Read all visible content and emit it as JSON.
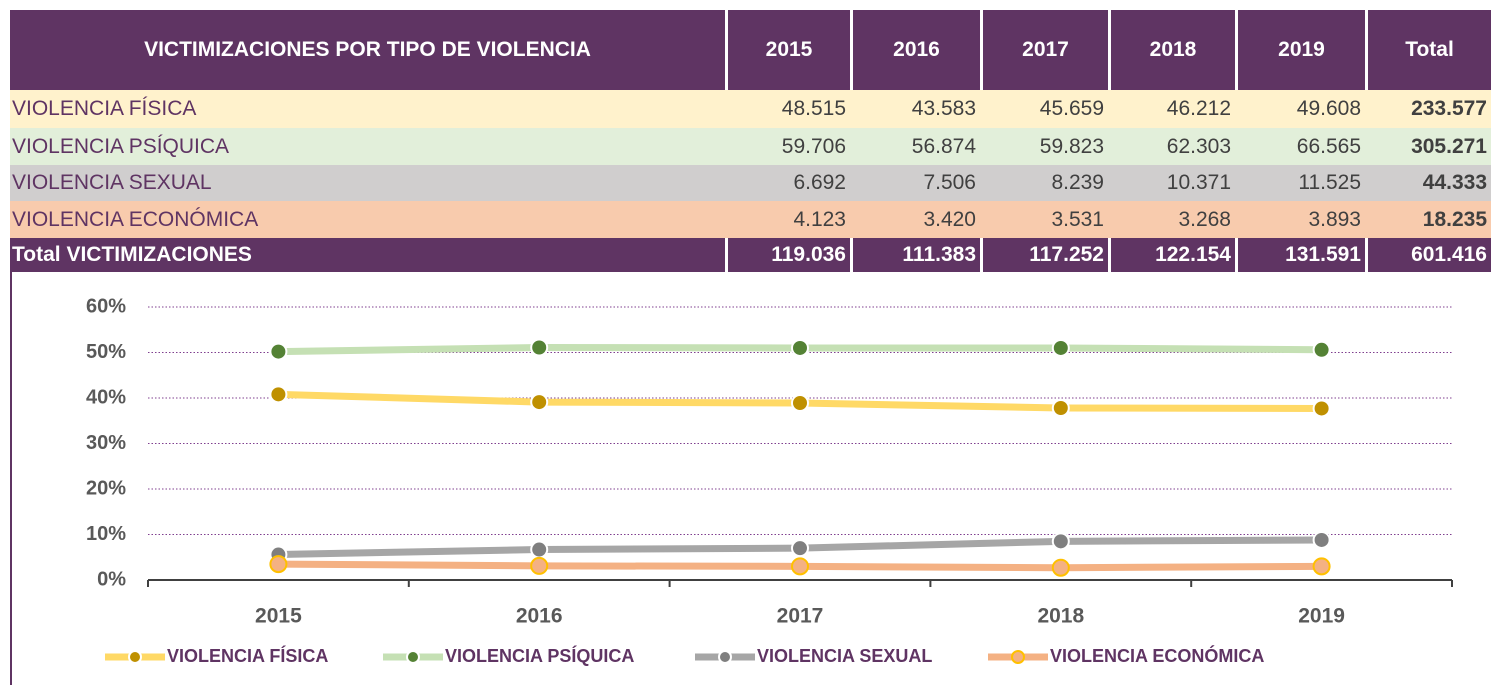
{
  "table": {
    "header": [
      "VICTIMIZACIONES POR TIPO DE VIOLENCIA",
      "2015",
      "2016",
      "2017",
      "2018",
      "2019",
      "Total"
    ],
    "rows": [
      [
        "VIOLENCIA FÍSICA",
        "48.515",
        "43.583",
        "45.659",
        "46.212",
        "49.608",
        "233.577"
      ],
      [
        "VIOLENCIA PSÍQUICA",
        "59.706",
        "56.874",
        "59.823",
        "62.303",
        "66.565",
        "305.271"
      ],
      [
        "VIOLENCIA SEXUAL",
        "6.692",
        "7.506",
        "8.239",
        "10.371",
        "11.525",
        "44.333"
      ],
      [
        "VIOLENCIA ECONÓMICA",
        "4.123",
        "3.420",
        "3.531",
        "3.268",
        "3.893",
        "18.235"
      ],
      [
        "Total VICTIMIZACIONES",
        "119.036",
        "111.383",
        "117.252",
        "122.154",
        "131.591",
        "601.416"
      ]
    ]
  },
  "chart_data": {
    "type": "line",
    "categories": [
      "2015",
      "2016",
      "2017",
      "2018",
      "2019"
    ],
    "series": [
      {
        "name": "VIOLENCIA FÍSICA",
        "color": "#ffd966",
        "marker_color": "#bf9000",
        "values": [
          40.8,
          39.1,
          38.9,
          37.8,
          37.7
        ]
      },
      {
        "name": "VIOLENCIA PSÍQUICA",
        "color": "#c5e0b4",
        "marker_color": "#548235",
        "values": [
          50.2,
          51.1,
          51.0,
          51.0,
          50.6
        ]
      },
      {
        "name": "VIOLENCIA SEXUAL",
        "color": "#a6a6a6",
        "marker_color": "#7f7f7f",
        "values": [
          5.6,
          6.7,
          7.0,
          8.5,
          8.8
        ]
      },
      {
        "name": "VIOLENCIA ECONÓMICA",
        "color": "#f4b183",
        "marker_color": "#ffc000",
        "values": [
          3.5,
          3.1,
          3.0,
          2.7,
          3.0
        ]
      }
    ],
    "ylim": [
      0,
      60
    ],
    "yticks": [
      {
        "value": 0,
        "label": "0%"
      },
      {
        "value": 10,
        "label": "10%"
      },
      {
        "value": 20,
        "label": "20%"
      },
      {
        "value": 30,
        "label": "30%"
      },
      {
        "value": 40,
        "label": "40%"
      },
      {
        "value": 50,
        "label": "50%"
      },
      {
        "value": 60,
        "label": "60%"
      }
    ],
    "grid": true,
    "legend": "bottom"
  }
}
